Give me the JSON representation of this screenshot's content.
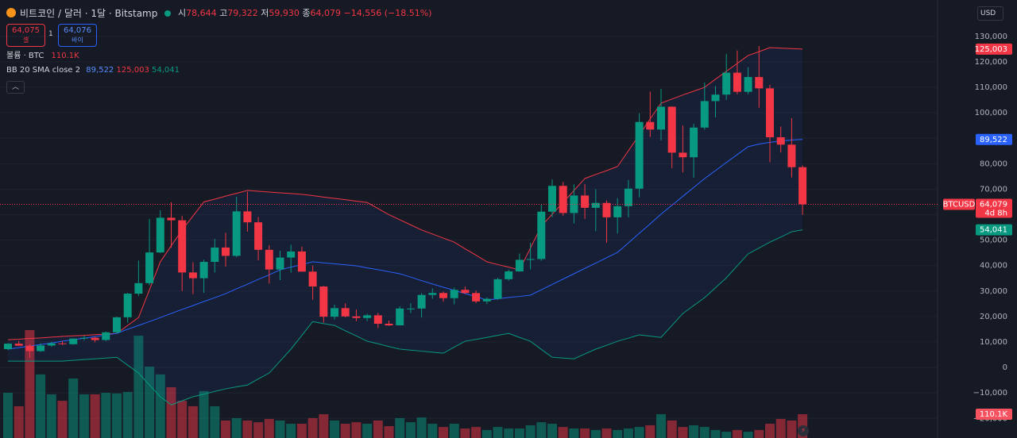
{
  "header": {
    "symbol": "비트코인 / 달러 · 1달 · Bitstamp",
    "ohlc": [
      {
        "label": "시",
        "value": "78,644"
      },
      {
        "label": "고",
        "value": "79,322"
      },
      {
        "label": "저",
        "value": "59,930"
      },
      {
        "label": "종",
        "value": "64,079"
      }
    ],
    "change": "−14,556 (−18.51%)"
  },
  "trade": {
    "sell_price": "64,075",
    "sell": "셀",
    "spread": "1",
    "buy_price": "64,076",
    "buy": "바이"
  },
  "volume_legend": "볼륨 · BTC",
  "bb_legend": "BB 20 SMA close 2",
  "currency": "USD",
  "chart_data": {
    "type": "candlestick",
    "up_color": "#089981",
    "down_color": "#f23645",
    "open": [
      7200,
      9350,
      8540,
      6420,
      8630,
      9450,
      9140,
      11350,
      11660,
      10780,
      13800,
      19700,
      28990,
      33110,
      45170,
      58800,
      57800,
      37300,
      35040,
      41460,
      47100,
      43830,
      61300,
      57000,
      46200,
      38480,
      43160,
      45540,
      37640,
      31790,
      19930,
      23300,
      20050,
      19430,
      20490,
      17170,
      16540,
      23130,
      23140,
      28480,
      29250,
      27220,
      30480,
      29230,
      25940,
      26960,
      34660,
      37720,
      42280,
      42580,
      61180,
      71300,
      60650,
      67530,
      62700,
      64620,
      58970,
      63330,
      70220,
      96400,
      93430,
      102400,
      84350,
      82550,
      94200,
      104600,
      107150,
      115760,
      108250,
      114050,
      109600,
      90400,
      87500,
      78644
    ],
    "high": [
      9580,
      10500,
      9190,
      9460,
      10070,
      10380,
      11440,
      12480,
      12070,
      14100,
      19900,
      29300,
      41950,
      58350,
      61780,
      64900,
      59500,
      41300,
      42300,
      50500,
      52900,
      67000,
      69000,
      59100,
      47990,
      45800,
      48190,
      47450,
      40000,
      31990,
      24670,
      25200,
      22800,
      21080,
      21480,
      18400,
      23950,
      25250,
      29200,
      31000,
      29830,
      31390,
      31800,
      30200,
      27500,
      35200,
      38400,
      44700,
      48970,
      64000,
      73800,
      72800,
      71950,
      72000,
      70000,
      65600,
      66500,
      73600,
      99800,
      108300,
      109350,
      102500,
      95000,
      95700,
      111900,
      110500,
      123200,
      124500,
      117900,
      126200,
      111000,
      94600,
      97900,
      79322
    ],
    "low": [
      6860,
      8450,
      3850,
      6150,
      8130,
      8830,
      8970,
      10550,
      9880,
      10380,
      13220,
      17600,
      28130,
      32300,
      44950,
      47000,
      30000,
      28800,
      29300,
      37300,
      39600,
      43300,
      53300,
      42000,
      32950,
      34300,
      37200,
      37600,
      26600,
      17600,
      18800,
      19600,
      18150,
      18200,
      15500,
      16260,
      16500,
      21350,
      19570,
      26950,
      25800,
      24800,
      28850,
      25300,
      24900,
      26550,
      34100,
      37600,
      38500,
      41880,
      59000,
      59600,
      56550,
      58400,
      53500,
      49000,
      52600,
      58900,
      66800,
      90500,
      89200,
      78200,
      76600,
      74500,
      93400,
      98200,
      105100,
      107300,
      107300,
      102000,
      80600,
      84400,
      74600,
      59930
    ],
    "close": [
      9350,
      8540,
      6420,
      8630,
      9450,
      9140,
      11350,
      11660,
      10780,
      13800,
      19700,
      28990,
      33110,
      45170,
      58800,
      57800,
      37300,
      35040,
      41460,
      47100,
      43830,
      61300,
      57000,
      46200,
      38480,
      43160,
      45540,
      37640,
      31790,
      19930,
      23300,
      20050,
      19430,
      20490,
      17170,
      16540,
      23130,
      23140,
      28480,
      29250,
      27220,
      30480,
      29230,
      25940,
      26960,
      34660,
      37720,
      42280,
      42580,
      61180,
      71300,
      60650,
      67530,
      62700,
      64620,
      58970,
      63330,
      70220,
      96400,
      93430,
      102400,
      84350,
      82550,
      94200,
      104600,
      107150,
      115760,
      108250,
      114050,
      109600,
      90400,
      87500,
      78644,
      64079
    ],
    "close_label": "64,079",
    "symbol_tag": "BTCUSD",
    "countdown": "4d 8h",
    "volume": [
      209000,
      147000,
      499000,
      294000,
      202000,
      172000,
      275000,
      202000,
      202000,
      209000,
      206000,
      213000,
      473000,
      330000,
      294000,
      235000,
      172000,
      147000,
      217000,
      147000,
      81000,
      92000,
      81000,
      73000,
      88000,
      81000,
      66000,
      66000,
      92000,
      110000,
      81000,
      66000,
      73000,
      66000,
      81000,
      55000,
      92000,
      73000,
      95000,
      66000,
      51000,
      66000,
      44000,
      51000,
      37000,
      51000,
      44000,
      44000,
      59000,
      73000,
      66000,
      51000,
      44000,
      44000,
      37000,
      44000,
      37000,
      44000,
      51000,
      59000,
      110000,
      81000,
      51000,
      59000,
      51000,
      37000,
      29000,
      37000,
      29000,
      37000,
      66000,
      88000,
      81000,
      110100
    ],
    "volume_label": "110.1K",
    "volume_lim": [
      0,
      2025000
    ],
    "bands": {
      "upper": {
        "color": "#f23645",
        "value_label": "125,003",
        "values": [
          10900,
          11100,
          11400,
          11600,
          11900,
          12200,
          12400,
          12600,
          12900,
          13100,
          13400,
          16500,
          19600,
          30500,
          41500,
          47800,
          54000,
          59500,
          65000,
          66100,
          67300,
          68400,
          69500,
          69200,
          68900,
          68600,
          68300,
          68000,
          67500,
          66900,
          66400,
          65900,
          65300,
          64800,
          62400,
          60000,
          58000,
          56000,
          54000,
          52400,
          50800,
          49200,
          46600,
          44100,
          41500,
          40400,
          39400,
          38300,
          46900,
          55500,
          60200,
          64800,
          69500,
          74200,
          75800,
          77300,
          78900,
          85100,
          91300,
          97600,
          103800,
          105400,
          107000,
          108500,
          110000,
          113200,
          116300,
          119400,
          122500,
          124000,
          125600,
          125400,
          125200,
          125003
        ]
      },
      "middle": {
        "color": "#2962ff",
        "value_label": "89,522",
        "values": [
          7200,
          7800,
          8400,
          9000,
          9600,
          10300,
          10900,
          11500,
          12100,
          12800,
          13400,
          15000,
          16500,
          18000,
          19600,
          21200,
          22800,
          24300,
          25900,
          27400,
          29000,
          30900,
          32700,
          34600,
          36400,
          38300,
          39400,
          40400,
          41500,
          41100,
          40700,
          40300,
          39900,
          39100,
          38400,
          37600,
          36800,
          35500,
          34100,
          32800,
          31500,
          30300,
          29000,
          27800,
          26500,
          27000,
          27500,
          27900,
          28400,
          30500,
          32600,
          34700,
          36800,
          38900,
          41000,
          43100,
          45200,
          48900,
          52700,
          56400,
          60200,
          63700,
          67200,
          70700,
          74200,
          77300,
          80500,
          83600,
          86700,
          87700,
          88400,
          88900,
          89300,
          89522
        ]
      },
      "lower": {
        "color": "#089981",
        "value_label": "54,041",
        "values": [
          2500,
          2500,
          2500,
          2500,
          2500,
          2500,
          2800,
          3100,
          3400,
          3700,
          4000,
          900,
          -2200,
          -6900,
          -11500,
          -14700,
          -13100,
          -11500,
          -10500,
          -9400,
          -8400,
          -7600,
          -6900,
          -4500,
          -2200,
          2500,
          7200,
          12600,
          18000,
          17200,
          16500,
          14400,
          12400,
          10300,
          9300,
          8200,
          7200,
          6800,
          6400,
          6000,
          5600,
          8000,
          10300,
          11000,
          11800,
          12600,
          13400,
          11800,
          10300,
          7100,
          4000,
          3700,
          3400,
          5300,
          7200,
          8700,
          10300,
          11500,
          12800,
          12300,
          11800,
          16500,
          21200,
          24300,
          27400,
          31300,
          35200,
          39900,
          44600,
          46900,
          49200,
          51200,
          53300,
          54041
        ]
      }
    },
    "band_fill": "#2962ff",
    "ylim": [
      -27700,
      144300
    ],
    "yticks": [
      {
        "value": 130000,
        "label": "130,000"
      },
      {
        "value": 120000,
        "label": "120,000"
      },
      {
        "value": 110000,
        "label": "110,000"
      },
      {
        "value": 100000,
        "label": "100,000"
      },
      {
        "value": 90000,
        "label": "90,000"
      },
      {
        "value": 80000,
        "label": "80,000"
      },
      {
        "value": 70000,
        "label": "70,000"
      },
      {
        "value": 60000,
        "label": "60,000"
      },
      {
        "value": 50000,
        "label": "50,000"
      },
      {
        "value": 40000,
        "label": "40,000"
      },
      {
        "value": 30000,
        "label": "30,000"
      },
      {
        "value": 20000,
        "label": "20,000"
      },
      {
        "value": 10000,
        "label": "10,000"
      },
      0,
      {
        "value": -10000,
        "label": "−10,000"
      },
      {
        "value": -20000,
        "label": "−20,000"
      }
    ],
    "grid": true
  }
}
